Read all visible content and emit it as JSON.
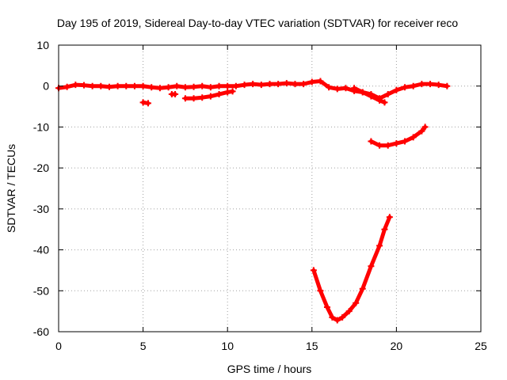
{
  "chart_data": {
    "type": "scatter",
    "title": "Day 195 of 2019, Sidereal Day-to-day VTEC variation (SDTVAR) for receiver reco",
    "xlabel": "GPS time / hours",
    "ylabel": "SDTVAR / TECUs",
    "xlim": [
      0,
      25
    ],
    "ylim": [
      -60,
      10
    ],
    "xticks": [
      0,
      5,
      10,
      15,
      20,
      25
    ],
    "yticks": [
      -60,
      -50,
      -40,
      -30,
      -20,
      -10,
      0,
      10
    ],
    "grid": true,
    "marker_color": "#ff0000",
    "series": [
      {
        "x": [
          0.0,
          0.5,
          1.0,
          1.5,
          2.0,
          2.5,
          3.0,
          3.5,
          4.0,
          4.5,
          5.0,
          5.5,
          6.0,
          6.5,
          7.0,
          7.5,
          8.0,
          8.5,
          9.0,
          9.5,
          10.0,
          10.5,
          11.0,
          11.5,
          12.0,
          12.5,
          13.0,
          13.5,
          14.0,
          14.5,
          15.0,
          15.5,
          16.0,
          16.5,
          17.0,
          17.5,
          18.0,
          18.5,
          19.0,
          19.5,
          20.0,
          20.5,
          21.0,
          21.5,
          22.0,
          22.5,
          23.0
        ],
        "y": [
          -0.5,
          -0.2,
          0.3,
          0.2,
          0.0,
          0.0,
          -0.2,
          0.0,
          0.0,
          0.0,
          0.0,
          -0.3,
          -0.5,
          -0.3,
          0.0,
          -0.3,
          -0.2,
          0.0,
          -0.3,
          0.0,
          0.0,
          0.0,
          0.3,
          0.5,
          0.3,
          0.5,
          0.5,
          0.7,
          0.5,
          0.5,
          1.0,
          1.2,
          -0.3,
          -0.7,
          -0.5,
          -1.2,
          -1.5,
          -2.0,
          -3.0,
          -2.0,
          -1.0,
          -0.3,
          0.0,
          0.5,
          0.5,
          0.3,
          0.0
        ]
      },
      {
        "x": [
          5.0,
          5.3
        ],
        "y": [
          -4.0,
          -4.2
        ]
      },
      {
        "x": [
          6.7,
          6.9
        ],
        "y": [
          -2.0,
          -2.0
        ]
      },
      {
        "x": [
          7.5,
          8.0,
          8.5,
          9.0,
          9.5,
          10.0,
          10.3
        ],
        "y": [
          -3.0,
          -3.0,
          -2.8,
          -2.5,
          -2.0,
          -1.5,
          -1.3
        ]
      },
      {
        "x": [
          17.5,
          18.0,
          18.5,
          19.0,
          19.3
        ],
        "y": [
          -0.5,
          -1.5,
          -2.5,
          -3.5,
          -4.0
        ]
      },
      {
        "x": [
          18.5,
          19.0,
          19.5,
          20.0,
          20.5,
          21.0,
          21.5,
          21.7
        ],
        "y": [
          -13.5,
          -14.5,
          -14.5,
          -14.0,
          -13.5,
          -12.5,
          -11.0,
          -10.0
        ]
      },
      {
        "x": [
          15.1,
          15.5,
          15.9,
          16.2,
          16.5,
          16.8,
          17.2,
          17.6,
          18.0,
          18.5,
          19.0,
          19.3,
          19.6
        ],
        "y": [
          -45.0,
          -50.0,
          -54.0,
          -56.5,
          -57.2,
          -56.5,
          -55.0,
          -53.0,
          -49.5,
          -44.0,
          -39.0,
          -35.0,
          -32.0
        ]
      }
    ]
  }
}
